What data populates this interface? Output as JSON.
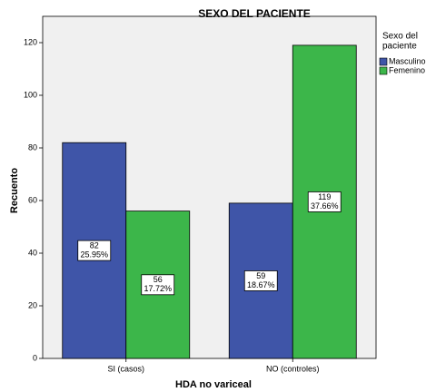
{
  "chart_data": {
    "type": "bar",
    "title": "SEXO DEL PACIENTE",
    "x_label": "HDA no variceal",
    "y_label": "Recuento",
    "legend_title": [
      "Sexo del",
      "paciente"
    ],
    "categories": [
      "SI (casos)",
      "NO (controles)"
    ],
    "series": [
      {
        "name": "Masculino",
        "color": "#3f55a8",
        "values": [
          82,
          59
        ],
        "value_labels": [
          [
            "82",
            "25.95%"
          ],
          [
            "59",
            "18.67%"
          ]
        ]
      },
      {
        "name": "Femenino",
        "color": "#3cb64a",
        "values": [
          56,
          119
        ],
        "value_labels": [
          [
            "56",
            "17.72%"
          ],
          [
            "119",
            "37.66%"
          ]
        ]
      }
    ],
    "ylim": [
      0,
      130
    ],
    "yticks": [
      0,
      20,
      40,
      60,
      80,
      100,
      120
    ],
    "legend": "right"
  }
}
